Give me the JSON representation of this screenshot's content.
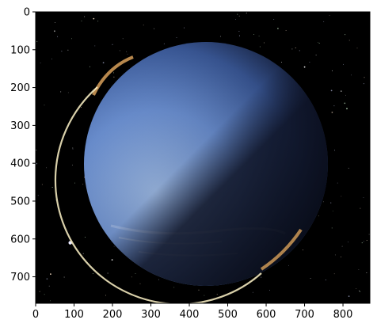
{
  "image": {
    "subject": "planet-in-space",
    "colors": {
      "space": "#000000",
      "planet_day": "#6f95d8",
      "planet_day_light": "#a6c4ef",
      "planet_night": "#0b0f1f",
      "terminator_glow": "#d8a05a",
      "rim_light": "#fff5c8",
      "axes": "#000000"
    }
  },
  "axes": {
    "x_range": [
      0,
      870
    ],
    "y_range": [
      0,
      770
    ],
    "y_inverted": true,
    "x_ticks": [
      {
        "value": 0,
        "label": "0"
      },
      {
        "value": 100,
        "label": "100"
      },
      {
        "value": 200,
        "label": "200"
      },
      {
        "value": 300,
        "label": "300"
      },
      {
        "value": 400,
        "label": "400"
      },
      {
        "value": 500,
        "label": "500"
      },
      {
        "value": 600,
        "label": "600"
      },
      {
        "value": 700,
        "label": "700"
      },
      {
        "value": 800,
        "label": "800"
      }
    ],
    "y_ticks": [
      {
        "value": 0,
        "label": "0"
      },
      {
        "value": 100,
        "label": "100"
      },
      {
        "value": 200,
        "label": "200"
      },
      {
        "value": 300,
        "label": "300"
      },
      {
        "value": 400,
        "label": "400"
      },
      {
        "value": 500,
        "label": "500"
      },
      {
        "value": 600,
        "label": "600"
      },
      {
        "value": 700,
        "label": "700"
      }
    ]
  }
}
